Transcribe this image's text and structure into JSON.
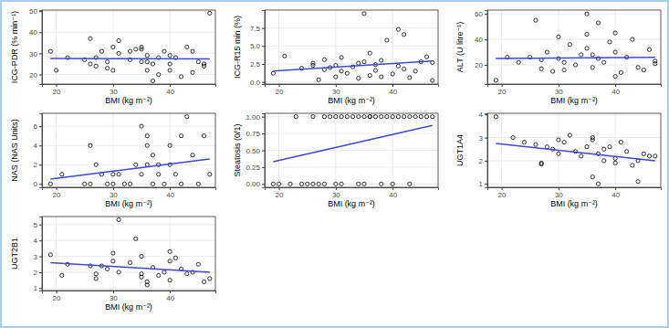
{
  "chart_data": [
    {
      "type": "scatter",
      "x_label": "BMI (kg m⁻²)",
      "y_label": "ICG-PDR (% min⁻¹)",
      "grid": true,
      "xlim": [
        17.5,
        48
      ],
      "xticks": [
        20,
        30,
        40
      ],
      "ylim": [
        15.5,
        50.5
      ],
      "yticks": [
        20,
        30,
        40,
        50
      ],
      "series": [
        {
          "type": "scatter",
          "marker": "circle-open",
          "color": "#000000",
          "x": [
            19,
            20,
            22,
            25,
            26,
            26,
            27,
            27,
            28,
            29,
            29,
            30,
            30,
            31,
            31,
            33,
            33,
            34,
            35,
            35,
            35,
            36,
            36,
            36,
            37,
            37,
            38,
            38,
            39,
            40,
            40,
            40,
            41,
            42,
            43,
            44,
            44,
            45,
            46,
            46,
            47
          ],
          "values": [
            31,
            22,
            28,
            27,
            25,
            37,
            24,
            28,
            31,
            26,
            23,
            33,
            22,
            36,
            30,
            27,
            31,
            32,
            26,
            32,
            33,
            22,
            26,
            29,
            17,
            25,
            28,
            20,
            31,
            22,
            29,
            25,
            28,
            19,
            33,
            31,
            21,
            26,
            25,
            24,
            49
          ]
        },
        {
          "type": "line",
          "color": "#3f48d8",
          "x": [
            19,
            47
          ],
          "values": [
            27.6,
            27.4
          ]
        }
      ]
    },
    {
      "type": "scatter",
      "x_label": "BMI (kg m⁻²)",
      "y_label": "ICG-R15 min (%)",
      "grid": true,
      "xlim": [
        17.5,
        48
      ],
      "xticks": [
        20,
        30,
        40
      ],
      "ylim": [
        -0.3,
        10
      ],
      "yticks": [
        {
          "value": 0,
          "label": "0.0"
        },
        {
          "value": 2.5,
          "label": "2.5"
        },
        {
          "value": 5,
          "label": "5.0"
        },
        {
          "value": 7.5,
          "label": "7.5"
        }
      ],
      "series": [
        {
          "type": "scatter",
          "marker": "circle-open",
          "color": "#000000",
          "x": [
            19,
            21,
            24,
            26,
            26,
            27,
            28,
            28,
            29,
            30,
            30,
            31,
            31,
            32,
            33,
            34,
            34,
            35,
            35,
            36,
            36,
            37,
            37,
            38,
            38,
            39,
            40,
            41,
            41,
            42,
            42,
            43,
            44,
            45,
            46,
            47,
            47
          ],
          "values": [
            1.2,
            3.6,
            1.9,
            2.3,
            2.6,
            0.3,
            3.1,
            1.7,
            2.0,
            2.3,
            0.7,
            3.4,
            1.5,
            1.2,
            2.1,
            0.5,
            2.6,
            9.5,
            2.8,
            0.9,
            4.0,
            1.6,
            2.4,
            3.0,
            0.7,
            5.8,
            1.1,
            7.3,
            2.2,
            6.6,
            1.8,
            0.6,
            1.5,
            2.8,
            3.5,
            0.2,
            2.7
          ]
        },
        {
          "type": "line",
          "color": "#3f48d8",
          "x": [
            19,
            47
          ],
          "values": [
            1.5,
            2.9
          ]
        }
      ]
    },
    {
      "type": "scatter",
      "x_label": "BMI (kg m⁻²)",
      "y_label": "ALT (U litre⁻¹)",
      "grid": true,
      "xlim": [
        17.5,
        48
      ],
      "xticks": [
        20,
        30,
        40
      ],
      "ylim": [
        5,
        63
      ],
      "yticks": [
        20,
        40,
        60
      ],
      "series": [
        {
          "type": "scatter",
          "marker": "circle-open",
          "color": "#000000",
          "x": [
            19,
            21,
            23,
            25,
            26,
            27,
            27,
            28,
            29,
            30,
            30,
            31,
            31,
            32,
            33,
            34,
            35,
            35,
            35,
            36,
            36,
            37,
            37,
            38,
            39,
            40,
            40,
            40,
            41,
            42,
            43,
            44,
            45,
            46,
            47,
            47
          ],
          "values": [
            8,
            26,
            22,
            26,
            55,
            17,
            24,
            30,
            15,
            25,
            42,
            16,
            22,
            36,
            20,
            28,
            60,
            44,
            33,
            28,
            18,
            25,
            53,
            22,
            38,
            11,
            45,
            30,
            14,
            26,
            40,
            18,
            16,
            32,
            21,
            23
          ]
        },
        {
          "type": "line",
          "color": "#3f48d8",
          "x": [
            19,
            47
          ],
          "values": [
            25,
            26
          ]
        }
      ]
    },
    {
      "type": "scatter",
      "x_label": "BMI (kg m⁻²)",
      "y_label": "NAS (NAS Units)",
      "grid": true,
      "xlim": [
        17.5,
        48
      ],
      "xticks": [
        20,
        30,
        40
      ],
      "ylim": [
        -0.35,
        7.35
      ],
      "yticks": [
        0,
        2,
        4,
        6
      ],
      "series": [
        {
          "type": "scatter",
          "marker": "circle-open",
          "color": "#000000",
          "x": [
            19,
            21,
            25,
            26,
            26,
            27,
            28,
            29,
            30,
            30,
            31,
            32,
            33,
            34,
            35,
            35,
            36,
            36,
            36,
            37,
            37,
            38,
            38,
            39,
            40,
            40,
            41,
            42,
            42,
            43,
            44,
            45,
            46,
            47
          ],
          "values": [
            0,
            1,
            0,
            4,
            0,
            2,
            1,
            0,
            1,
            0,
            1,
            0,
            0,
            2,
            1,
            6,
            5,
            4,
            2,
            0,
            3,
            2,
            1,
            0,
            2,
            4,
            1,
            0,
            5,
            7,
            3,
            0,
            5,
            1
          ]
        },
        {
          "type": "line",
          "color": "#3f48d8",
          "x": [
            19,
            47
          ],
          "values": [
            0.5,
            2.6
          ]
        }
      ]
    },
    {
      "type": "scatter",
      "x_label": "BMI (kg m⁻²)",
      "y_label": "Steatosis (0/1)",
      "grid": true,
      "xlim": [
        17.5,
        48
      ],
      "xticks": [
        20,
        30,
        40
      ],
      "ylim": [
        -0.05,
        1.05
      ],
      "yticks": [
        {
          "value": 0,
          "label": "0.00"
        },
        {
          "value": 0.25,
          "label": "0.25"
        },
        {
          "value": 0.5,
          "label": "0.50"
        },
        {
          "value": 0.75,
          "label": "0.75"
        },
        {
          "value": 1,
          "label": "1.00"
        }
      ],
      "series": [
        {
          "type": "scatter",
          "marker": "circle-open",
          "color": "#000000",
          "x": [
            19,
            20,
            22,
            24,
            25,
            26,
            27,
            28,
            30,
            31,
            34,
            35,
            38,
            40,
            43,
            23,
            26,
            28,
            29,
            30,
            31,
            32,
            33,
            34,
            35,
            36,
            36,
            37,
            38,
            39,
            40,
            41,
            42,
            43,
            44,
            45,
            46,
            47
          ],
          "values": [
            0,
            0,
            0,
            0,
            0,
            0,
            0,
            0,
            0,
            0,
            0,
            0,
            0,
            0,
            0,
            1,
            1,
            1,
            1,
            1,
            1,
            1,
            1,
            1,
            1,
            1,
            1,
            1,
            1,
            1,
            1,
            1,
            1,
            1,
            1,
            1,
            1,
            1
          ]
        },
        {
          "type": "line",
          "color": "#3f48d8",
          "x": [
            19,
            47
          ],
          "values": [
            0.33,
            0.87
          ]
        }
      ]
    },
    {
      "type": "scatter",
      "x_label": "BMI (kg m⁻²)",
      "y_label": "UGT1A4",
      "grid": true,
      "xlim": [
        17.5,
        48
      ],
      "xticks": [
        20,
        30,
        40
      ],
      "ylim": [
        0.85,
        4.05
      ],
      "yticks": [
        1,
        2,
        3,
        4
      ],
      "series": [
        {
          "type": "scatter",
          "marker": "circle-open",
          "color": "#000000",
          "x": [
            19,
            22,
            24,
            26,
            27,
            27,
            28,
            29,
            30,
            30,
            31,
            32,
            33,
            34,
            35,
            36,
            36,
            36,
            37,
            37,
            38,
            38,
            39,
            40,
            40,
            41,
            42,
            43,
            44,
            44,
            45,
            46,
            47
          ],
          "values": [
            3.9,
            3.0,
            2.8,
            2.7,
            1.9,
            1.85,
            2.6,
            2.5,
            2.3,
            2.9,
            2.8,
            3.1,
            2.4,
            2.2,
            2.6,
            1.3,
            3.0,
            2.9,
            1.0,
            2.3,
            2.0,
            2.5,
            2.6,
            1.9,
            2.1,
            2.8,
            2.4,
            1.8,
            1.1,
            2.0,
            2.3,
            2.2,
            2.2
          ]
        },
        {
          "type": "line",
          "color": "#3f48d8",
          "x": [
            19,
            47
          ],
          "values": [
            2.75,
            2.0
          ]
        }
      ]
    },
    {
      "type": "scatter",
      "x_label": "BMI (kg m⁻²)",
      "y_label": "UGT2B1",
      "grid": true,
      "xlim": [
        17.5,
        48
      ],
      "xticks": [
        20,
        30,
        40
      ],
      "ylim": [
        0.85,
        5.5
      ],
      "yticks": [
        1,
        2,
        3,
        4,
        5
      ],
      "series": [
        {
          "type": "scatter",
          "marker": "circle-open",
          "color": "#000000",
          "x": [
            19,
            21,
            22,
            26,
            27,
            27,
            28,
            29,
            30,
            30,
            31,
            31,
            33,
            34,
            35,
            35,
            35,
            36,
            36,
            37,
            38,
            39,
            40,
            40,
            40,
            41,
            42,
            43,
            44,
            45,
            46,
            47
          ],
          "values": [
            3.1,
            1.8,
            2.5,
            2.4,
            1.9,
            1.6,
            2.4,
            2.2,
            2.7,
            3.2,
            5.3,
            2.0,
            2.6,
            4.1,
            1.9,
            1.7,
            3.0,
            1.2,
            1.4,
            2.3,
            1.8,
            2.0,
            2.7,
            3.3,
            1.5,
            2.9,
            2.2,
            1.9,
            2.0,
            2.5,
            1.4,
            1.6
          ]
        },
        {
          "type": "line",
          "color": "#3f48d8",
          "x": [
            19,
            47
          ],
          "values": [
            2.6,
            2.0
          ]
        }
      ]
    }
  ]
}
